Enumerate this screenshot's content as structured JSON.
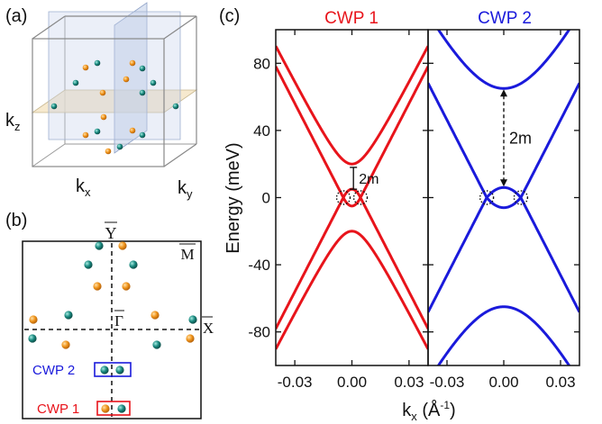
{
  "panel_a": {
    "label": "(a)",
    "axis_x": "k",
    "axis_x_sub": "x",
    "axis_y": "k",
    "axis_y_sub": "y",
    "axis_z": "k",
    "axis_z_sub": "z"
  },
  "panel_b": {
    "label": "(b)",
    "point_y": "Y",
    "point_m": "M",
    "point_gamma": "Γ",
    "point_x": "X",
    "box_cwp2": "CWP 2",
    "box_cwp1": "CWP 1"
  },
  "panel_c": {
    "label": "(c)",
    "ylabel": "Energy (meV)",
    "xlabel": "k",
    "xlabel_sub": "x",
    "xlabel_unit_open": " (Å",
    "xlabel_unit_exp": "-1",
    "xlabel_unit_close": ")",
    "mass_label_left": "2m",
    "mass_label_right": "2m"
  },
  "colors": {
    "cwp1": "#e8141b",
    "cwp2": "#1a1adb",
    "orange_point": "#f0951c",
    "teal_point": "#1a8a80"
  },
  "chart_data": [
    {
      "type": "line",
      "title": "CWP 1",
      "xlim": [
        -0.04,
        0.04
      ],
      "ylim": [
        -100,
        100
      ],
      "xticks": [
        "-0.03",
        "0.00",
        "0.03"
      ],
      "xtick_values": [
        -0.03,
        0.0,
        0.03
      ],
      "yticks": [
        "80",
        "40",
        "0",
        "-40",
        "-80"
      ],
      "ytick_values": [
        80,
        40,
        0,
        -40,
        -80
      ],
      "band_params": {
        "v": 2200,
        "k0": 0.0045,
        "gap_half": 20
      },
      "band_extrema": {
        "upper_min": 20,
        "inner_upper_min": 5,
        "inner_lower_max": -5,
        "lower_max": -20
      },
      "crossings_kx": [
        -0.0045,
        0.0045
      ],
      "crossing_energy": 0
    },
    {
      "type": "line",
      "title": "CWP 2",
      "xlim": [
        -0.04,
        0.04
      ],
      "ylim": [
        -100,
        100
      ],
      "xticks": [
        "-0.03",
        "0.00",
        "0.03"
      ],
      "xtick_values": [
        -0.03,
        0.0,
        0.03
      ],
      "band_params": {
        "v": 2200,
        "k0": 0.009,
        "gap_half": 65
      },
      "band_extrema": {
        "upper_min": 65,
        "inner_upper_min": 6,
        "inner_lower_max": -6,
        "lower_max": -65
      },
      "crossings_kx": [
        -0.009,
        0.009
      ],
      "crossing_energy": 0
    }
  ]
}
